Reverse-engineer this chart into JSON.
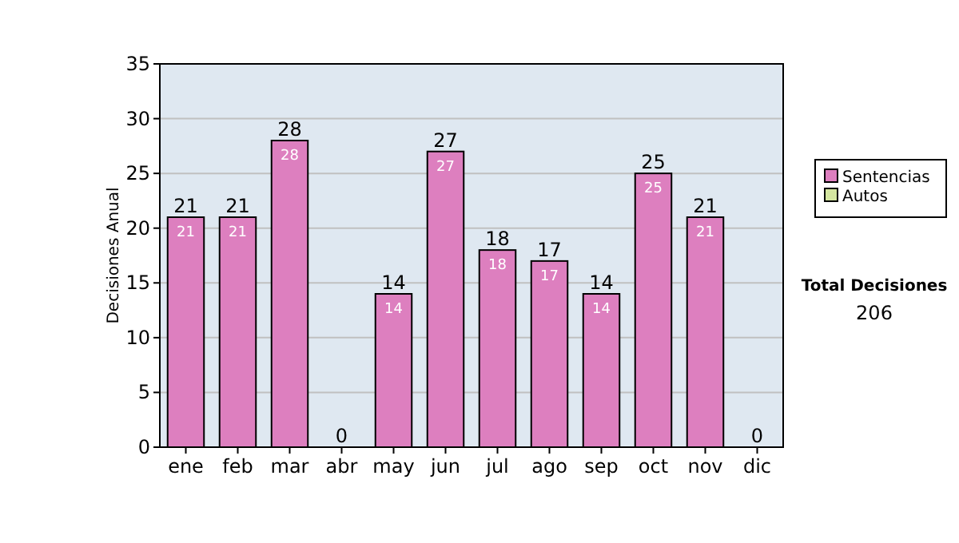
{
  "chart_data": {
    "type": "bar",
    "stacked": true,
    "ylabel": "Decisiones Anual",
    "categories": [
      "ene",
      "feb",
      "mar",
      "abr",
      "may",
      "jun",
      "jul",
      "ago",
      "sep",
      "oct",
      "nov",
      "dic"
    ],
    "series": [
      {
        "name": "Sentencias",
        "color": "#dd7fbf",
        "values": [
          21,
          21,
          28,
          0,
          14,
          27,
          18,
          17,
          14,
          25,
          21,
          0
        ],
        "value_labels": [
          "21",
          "21",
          "28",
          null,
          "14",
          "27",
          "18",
          "17",
          "14",
          "25",
          "21",
          null
        ]
      },
      {
        "name": "Autos",
        "color": "#d4e6a0",
        "values": [
          0,
          0,
          0,
          0,
          0,
          0,
          0,
          0,
          0,
          0,
          0,
          0
        ]
      }
    ],
    "totals": [
      "21",
      "21",
      "28",
      "0",
      "14",
      "27",
      "18",
      "17",
      "14",
      "25",
      "21",
      "0"
    ],
    "ylim": [
      0,
      35
    ],
    "yticks": [
      0,
      5,
      10,
      15,
      20,
      25,
      30,
      35
    ],
    "grid": "y",
    "legend": "right",
    "annotations": [
      "Total Decisiones",
      "206"
    ]
  }
}
